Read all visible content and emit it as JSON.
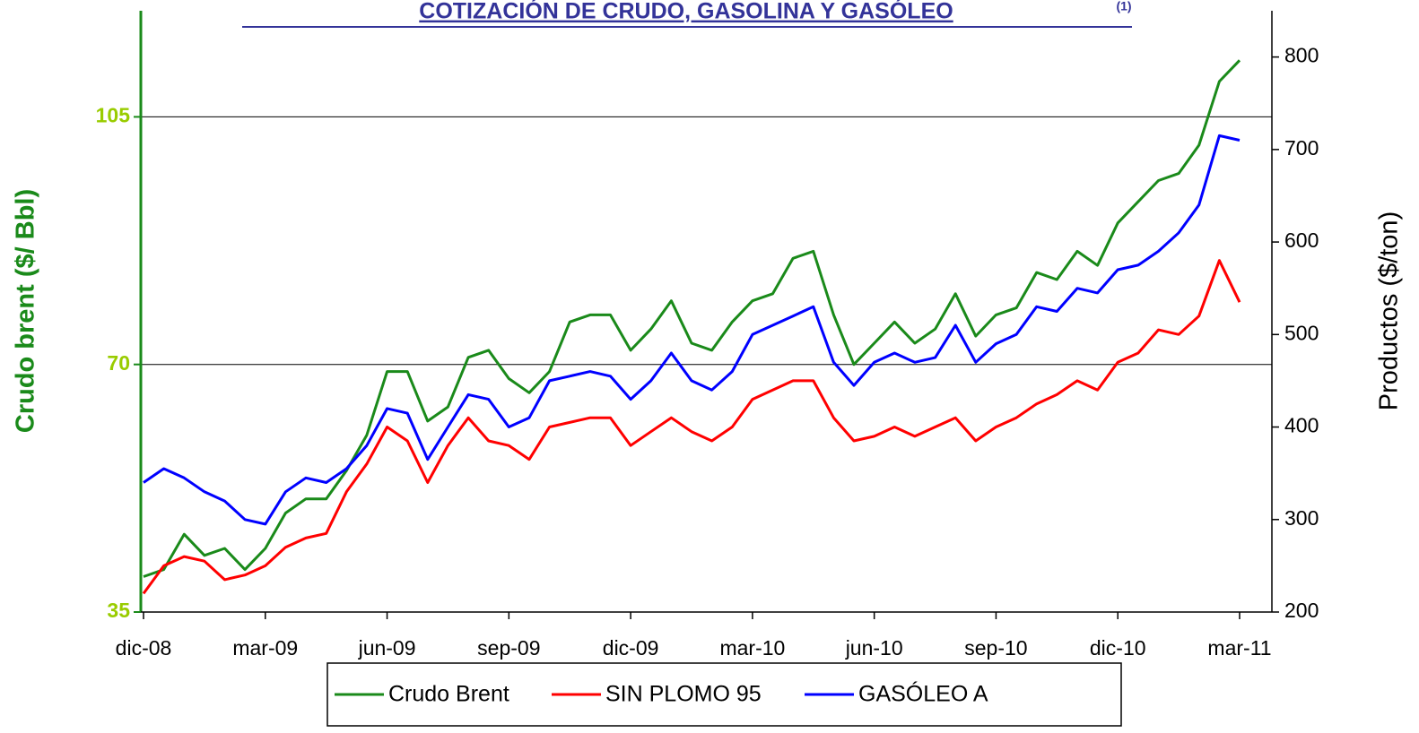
{
  "chart_data": {
    "type": "line",
    "title": "COTIZACIÓN DE CRUDO, GASOLINA Y GASÓLEO",
    "title_note": "(1)",
    "y_label": "Crudo brent ($/ Bbl)",
    "y2_label": "Productos ($/ton)",
    "categories": [
      "dic-08",
      null,
      null,
      null,
      null,
      null,
      "mar-09",
      null,
      null,
      null,
      null,
      null,
      "jun-09",
      null,
      null,
      null,
      null,
      null,
      "sep-09",
      null,
      null,
      null,
      null,
      null,
      "dic-09",
      null,
      null,
      null,
      null,
      null,
      "mar-10",
      null,
      null,
      null,
      null,
      null,
      "jun-10",
      null,
      null,
      null,
      null,
      null,
      "sep-10",
      null,
      null,
      null,
      null,
      null,
      "dic-10",
      null,
      null,
      null,
      null,
      null,
      "mar-11"
    ],
    "series": [
      {
        "name": "Crudo Brent",
        "color": "#1a8a1a",
        "axis": "y",
        "values": [
          40,
          41,
          46,
          43,
          44,
          41,
          44,
          49,
          51,
          51,
          55,
          60,
          69,
          69,
          62,
          64,
          71,
          72,
          68,
          66,
          69,
          76,
          77,
          77,
          72,
          75,
          79,
          73,
          72,
          76,
          79,
          80,
          85,
          86,
          77,
          70,
          73,
          76,
          73,
          75,
          80,
          74,
          77,
          78,
          83,
          82,
          86,
          84,
          90,
          93,
          96,
          97,
          101,
          110,
          113
        ]
      },
      {
        "name": "SIN PLOMO 95",
        "color": "#ff0000",
        "axis": "y2",
        "values": [
          220,
          250,
          260,
          255,
          235,
          240,
          250,
          270,
          280,
          285,
          330,
          360,
          400,
          385,
          340,
          380,
          410,
          385,
          380,
          365,
          400,
          405,
          410,
          410,
          380,
          395,
          410,
          395,
          385,
          400,
          430,
          440,
          450,
          450,
          410,
          385,
          390,
          400,
          390,
          400,
          410,
          385,
          400,
          410,
          425,
          435,
          450,
          440,
          470,
          480,
          505,
          500,
          520,
          580,
          535
        ]
      },
      {
        "name": "GASÓLEO A",
        "color": "#0000ff",
        "axis": "y2",
        "values": [
          340,
          355,
          345,
          330,
          320,
          300,
          295,
          330,
          345,
          340,
          355,
          380,
          420,
          415,
          365,
          400,
          435,
          430,
          400,
          410,
          450,
          455,
          460,
          455,
          430,
          450,
          480,
          450,
          440,
          460,
          500,
          510,
          520,
          530,
          470,
          445,
          470,
          480,
          470,
          475,
          510,
          470,
          490,
          500,
          530,
          525,
          550,
          545,
          570,
          575,
          590,
          610,
          640,
          715,
          710
        ]
      }
    ],
    "ylim": [
      35,
      120
    ],
    "yticks": [
      35,
      70,
      105
    ],
    "y2lim": [
      200,
      850
    ],
    "y2ticks": [
      200,
      300,
      400,
      500,
      600,
      700,
      800
    ],
    "grid": true,
    "legend": "bottom"
  }
}
